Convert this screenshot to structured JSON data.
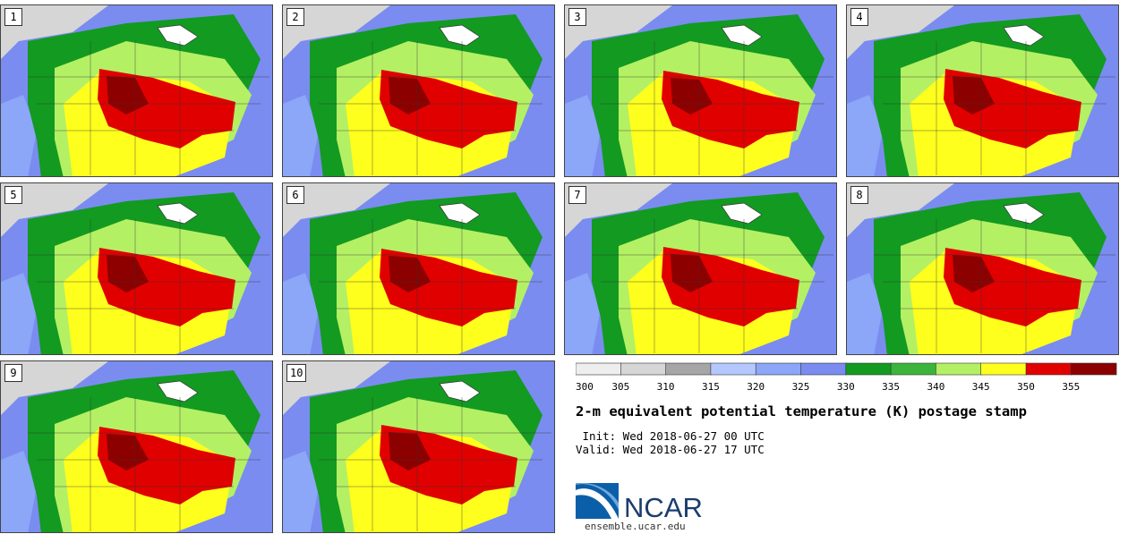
{
  "panels": [
    {
      "label": "1"
    },
    {
      "label": "2"
    },
    {
      "label": "3"
    },
    {
      "label": "4"
    },
    {
      "label": "5"
    },
    {
      "label": "6"
    },
    {
      "label": "7"
    },
    {
      "label": "8"
    },
    {
      "label": "9"
    },
    {
      "label": "10"
    }
  ],
  "legend": {
    "ticks": [
      "300",
      "305",
      "310",
      "315",
      "320",
      "325",
      "330",
      "335",
      "340",
      "345",
      "350",
      "355"
    ],
    "colors": [
      "#eeeeee",
      "#d6d6d6",
      "#a6a6a6",
      "#b4c8ff",
      "#8ca6f8",
      "#7a8cf0",
      "#139a21",
      "#3cb43c",
      "#b4f064",
      "#ffff1e",
      "#e10000",
      "#8c0000"
    ]
  },
  "title": "2-m equivalent potential temperature (K) postage stamp",
  "init": " Init: Wed 2018-06-27 00 UTC",
  "valid": "Valid: Wed 2018-06-27 17 UTC",
  "logo_text": "NCAR",
  "url": "ensemble.ucar.edu"
}
